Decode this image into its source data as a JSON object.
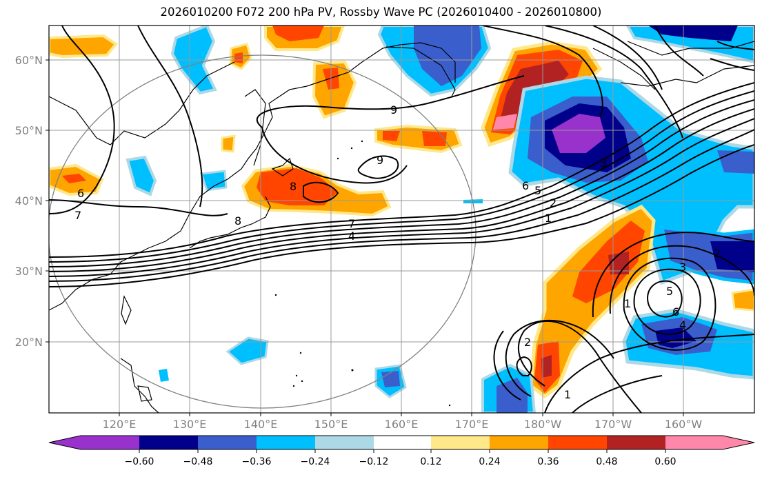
{
  "title": "2026010200 F072 200 hPa PV, Rossby Wave PC (2026010400 - 2026010800)",
  "lat_labels": [
    "60°N",
    "50°N",
    "40°N",
    "30°N",
    "20°N"
  ],
  "lon_labels": [
    "120°E",
    "130°E",
    "140°E",
    "150°E",
    "160°E",
    "170°E",
    "180°W",
    "170°W",
    "160°W"
  ],
  "contour_labels": [
    "9",
    "9",
    "8",
    "8",
    "7",
    "7",
    "6",
    "6",
    "5",
    "5",
    "4",
    "4",
    "3",
    "3",
    "2",
    "2",
    "2",
    "1",
    "1",
    "1",
    "6"
  ],
  "colorbar": {
    "ticks": [
      "−0.60",
      "−0.48",
      "−0.36",
      "−0.24",
      "−0.12",
      "0.12",
      "0.24",
      "0.36",
      "0.48",
      "0.60"
    ],
    "colors": [
      "#9932CC",
      "#00008B",
      "#3A5FCD",
      "#00BFFF",
      "#ADD8E6",
      "#FFFFFF",
      "#FFE88A",
      "#FFA500",
      "#FF4500",
      "#B22222",
      "#FF88AA"
    ]
  },
  "colors": {
    "positive_1": "#FFE88A",
    "positive_2": "#FFA500",
    "positive_3": "#FF4500",
    "positive_4": "#B22222",
    "positive_5": "#FF88AA",
    "negative_1": "#ADD8E6",
    "negative_2": "#00BFFF",
    "negative_3": "#3A5FCD",
    "negative_4": "#00008B",
    "negative_5": "#9932CC"
  }
}
